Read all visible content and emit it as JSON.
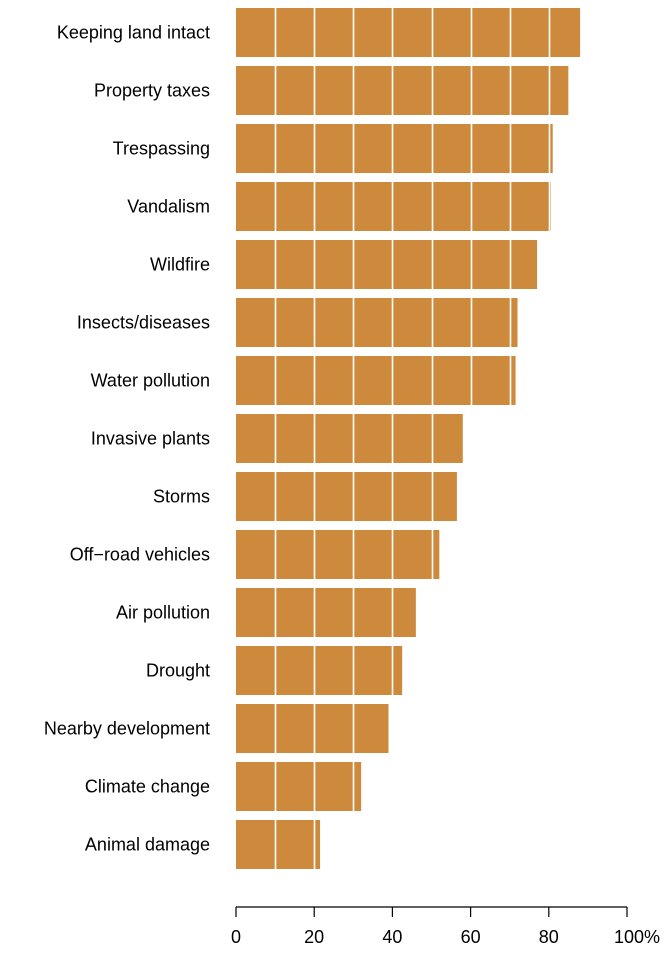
{
  "chart_data": {
    "type": "bar",
    "orientation": "horizontal",
    "categories": [
      "Keeping land intact",
      "Property taxes",
      "Trespassing",
      "Vandalism",
      "Wildfire",
      "Insects/diseases",
      "Water pollution",
      "Invasive plants",
      "Storms",
      "Off−road vehicles",
      "Air pollution",
      "Drought",
      "Nearby development",
      "Climate change",
      "Animal damage"
    ],
    "values": [
      88,
      85,
      81,
      80.5,
      77,
      72,
      71.5,
      58,
      56.5,
      52,
      46,
      42.5,
      39,
      32,
      21.5
    ],
    "xlim": [
      0,
      100
    ],
    "xticks": [
      0,
      20,
      40,
      60,
      80,
      100
    ],
    "xtick_labels": [
      "0",
      "20",
      "40",
      "60",
      "80",
      "100%"
    ],
    "gridlines_on_bars_every": 10,
    "bar_color": "#CD8A3C",
    "gridline_color": "#ffffff",
    "title": "",
    "xlabel": "",
    "ylabel": ""
  }
}
